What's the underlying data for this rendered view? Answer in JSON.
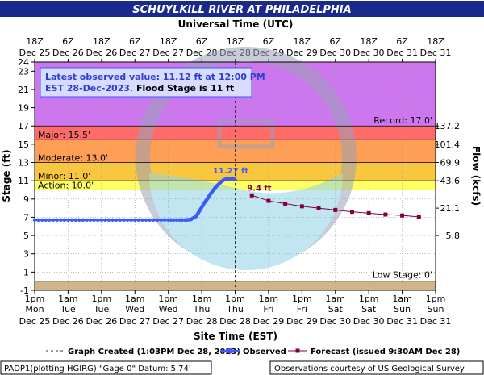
{
  "title": "SCHUYLKILL RIVER AT PHILADELPHIA",
  "top_axis_title": "Universal Time (UTC)",
  "bottom_axis_title": "Site Time (EST)",
  "ylabel_left": "Stage (ft)",
  "ylabel_right": "Flow (kcfs)",
  "info_box": {
    "line1": "Latest observed value: 11.12 ft at 12:00 PM",
    "line2_a": "EST 28-Dec-2023.",
    "line2_b": " Flood Stage is 11 ft"
  },
  "footer": {
    "left": "PADP1(plotting HGIRG) \"Gage 0\" Datum: 5.74'",
    "right": "Observations courtesy of US Geological Survey"
  },
  "legend": {
    "graph_created": "Graph Created (1:03PM Dec 28, 2023)",
    "observed": "Observed",
    "forecast": "Forecast (issued 9:30AM Dec 28)"
  },
  "colors": {
    "record_band": "#cc77ee",
    "major_band": "#ff6b6b",
    "moderate_band": "#ff9e55",
    "minor_band": "#f9c640",
    "action_band": "#ffff66",
    "low_band": "#d2b48c",
    "observed": "#3b5bff",
    "forecast": "#800040",
    "title_bar": "#1a2a8c",
    "watermark": "#8fd3e8"
  },
  "chart_data": {
    "type": "line",
    "title": "SCHUYLKILL RIVER AT PHILADELPHIA",
    "xlabel": "Site Time (EST)",
    "ylabel": "Stage (ft)",
    "ylim": [
      -1,
      24
    ],
    "x_range": [
      "Dec 25 1pm",
      "Dec 31 1pm"
    ],
    "y_ticks": [
      -1,
      1,
      3,
      5,
      7,
      9,
      11,
      13,
      15,
      17,
      19,
      21,
      23,
      24
    ],
    "right_ticks": [
      {
        "stage": 5,
        "label": "5.8"
      },
      {
        "stage": 8,
        "label": "21.1"
      },
      {
        "stage": 11,
        "label": "43.6"
      },
      {
        "stage": 13,
        "label": "69.9"
      },
      {
        "stage": 15,
        "label": "101.4"
      },
      {
        "stage": 17,
        "label": "137.2"
      }
    ],
    "bottom_ticks": [
      {
        "day": "Mon",
        "date": "Dec 25",
        "time": "1pm",
        "h": 0
      },
      {
        "day": "Tue",
        "date": "Dec 26",
        "time": "1am",
        "h": 12
      },
      {
        "day": "Tue",
        "date": "Dec 26",
        "time": "1pm",
        "h": 24
      },
      {
        "day": "Wed",
        "date": "Dec 27",
        "time": "1am",
        "h": 36
      },
      {
        "day": "Wed",
        "date": "Dec 27",
        "time": "1pm",
        "h": 48
      },
      {
        "day": "Thu",
        "date": "Dec 28",
        "time": "1am",
        "h": 60
      },
      {
        "day": "Thu",
        "date": "Dec 28",
        "time": "1pm",
        "h": 72
      },
      {
        "day": "Fri",
        "date": "Dec 29",
        "time": "1am",
        "h": 84
      },
      {
        "day": "Fri",
        "date": "Dec 29",
        "time": "1pm",
        "h": 96
      },
      {
        "day": "Sat",
        "date": "Dec 30",
        "time": "1am",
        "h": 108
      },
      {
        "day": "Sat",
        "date": "Dec 30",
        "time": "1pm",
        "h": 120
      },
      {
        "day": "Sun",
        "date": "Dec 31",
        "time": "1am",
        "h": 132
      },
      {
        "day": "Sun",
        "date": "Dec 31",
        "time": "1pm",
        "h": 144
      }
    ],
    "top_ticks": [
      {
        "time": "18Z",
        "date": "Dec 25",
        "h": 0
      },
      {
        "time": "6Z",
        "date": "Dec 26",
        "h": 12
      },
      {
        "time": "18Z",
        "date": "Dec 26",
        "h": 24
      },
      {
        "time": "6Z",
        "date": "Dec 27",
        "h": 36
      },
      {
        "time": "18Z",
        "date": "Dec 27",
        "h": 48
      },
      {
        "time": "6Z",
        "date": "Dec 28",
        "h": 60
      },
      {
        "time": "18Z",
        "date": "Dec 28",
        "h": 72
      },
      {
        "time": "6Z",
        "date": "Dec 29",
        "h": 84
      },
      {
        "time": "18Z",
        "date": "Dec 29",
        "h": 96
      },
      {
        "time": "6Z",
        "date": "Dec 30",
        "h": 108
      },
      {
        "time": "18Z",
        "date": "Dec 30",
        "h": 120
      },
      {
        "time": "6Z",
        "date": "Dec 31",
        "h": 132
      },
      {
        "time": "18Z",
        "date": "Dec 31",
        "h": 144
      }
    ],
    "flood_categories": [
      {
        "name": "Record",
        "label": "Record: 17.0'",
        "from": 17,
        "to": 24,
        "color": "#cc77ee"
      },
      {
        "name": "Major",
        "label": "Major: 15.5'",
        "from": 15.5,
        "to": 17,
        "color": "#ff6b6b"
      },
      {
        "name": "Moderate",
        "label": "Moderate: 13.0'",
        "from": 13,
        "to": 15.5,
        "color": "#ff9e55"
      },
      {
        "name": "Minor",
        "label": "Minor: 11.0'",
        "from": 11,
        "to": 13,
        "color": "#f9c640"
      },
      {
        "name": "Action",
        "label": "Action: 10.0'",
        "from": 10,
        "to": 11,
        "color": "#ffff66"
      },
      {
        "name": "Low",
        "label": "Low Stage: 0'",
        "from": -1,
        "to": 0,
        "color": "#d2b48c"
      }
    ],
    "graph_created_h": 72,
    "observed_peak": {
      "label": "11.27 ft",
      "h": 71,
      "stage": 11.27
    },
    "forecast_start": {
      "label": "9.4 ft",
      "h": 78,
      "stage": 9.4
    },
    "series": [
      {
        "name": "Observed",
        "points": [
          {
            "h": 0,
            "y": 6.7
          },
          {
            "h": 8,
            "y": 6.7
          },
          {
            "h": 16,
            "y": 6.7
          },
          {
            "h": 24,
            "y": 6.7
          },
          {
            "h": 32,
            "y": 6.7
          },
          {
            "h": 40,
            "y": 6.7
          },
          {
            "h": 48,
            "y": 6.7
          },
          {
            "h": 54,
            "y": 6.7
          },
          {
            "h": 56,
            "y": 6.75
          },
          {
            "h": 58,
            "y": 7.1
          },
          {
            "h": 59,
            "y": 7.6
          },
          {
            "h": 60,
            "y": 8.1
          },
          {
            "h": 61,
            "y": 8.6
          },
          {
            "h": 62,
            "y": 9.0
          },
          {
            "h": 63,
            "y": 9.5
          },
          {
            "h": 64,
            "y": 9.9
          },
          {
            "h": 65,
            "y": 10.3
          },
          {
            "h": 66,
            "y": 10.6
          },
          {
            "h": 67,
            "y": 10.9
          },
          {
            "h": 68,
            "y": 11.1
          },
          {
            "h": 69,
            "y": 11.22
          },
          {
            "h": 70,
            "y": 11.26
          },
          {
            "h": 71,
            "y": 11.27
          },
          {
            "h": 72,
            "y": 11.12
          }
        ]
      },
      {
        "name": "Forecast",
        "points": [
          {
            "h": 78,
            "y": 9.4
          },
          {
            "h": 84,
            "y": 8.8
          },
          {
            "h": 90,
            "y": 8.5
          },
          {
            "h": 96,
            "y": 8.2
          },
          {
            "h": 102,
            "y": 8.0
          },
          {
            "h": 108,
            "y": 7.8
          },
          {
            "h": 114,
            "y": 7.6
          },
          {
            "h": 120,
            "y": 7.45
          },
          {
            "h": 126,
            "y": 7.3
          },
          {
            "h": 132,
            "y": 7.2
          },
          {
            "h": 138,
            "y": 7.05
          }
        ]
      }
    ]
  }
}
